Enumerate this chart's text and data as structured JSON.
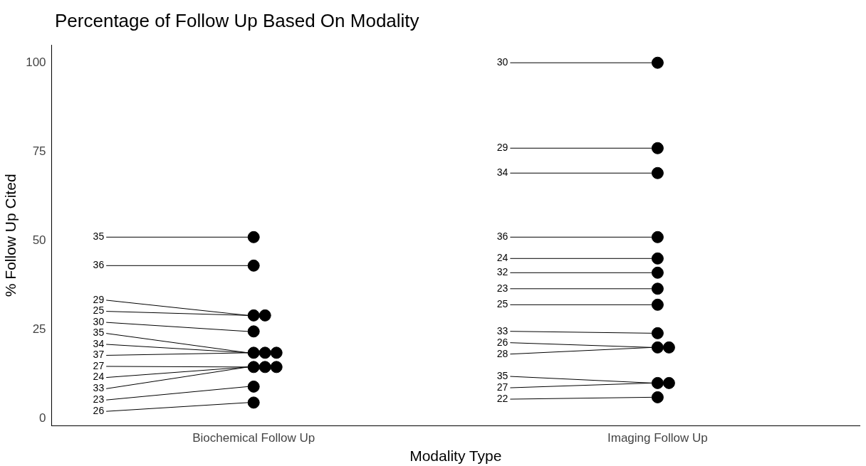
{
  "chart_data": {
    "type": "scatter",
    "title": "Percentage of Follow Up Based On Modality",
    "xlabel": "Modality Type",
    "ylabel": "% Follow Up Cited",
    "categories": [
      "Biochemical Follow Up",
      "Imaging Follow Up"
    ],
    "series": [
      {
        "color": "#000000",
        "x": [
          "Biochemical Follow Up",
          "Biochemical Follow Up",
          "Biochemical Follow Up",
          "Biochemical Follow Up",
          "Biochemical Follow Up",
          "Biochemical Follow Up",
          "Biochemical Follow Up",
          "Biochemical Follow Up",
          "Biochemical Follow Up",
          "Biochemical Follow Up",
          "Biochemical Follow Up",
          "Biochemical Follow Up",
          "Biochemical Follow Up",
          "Imaging Follow Up",
          "Imaging Follow Up",
          "Imaging Follow Up",
          "Imaging Follow Up",
          "Imaging Follow Up",
          "Imaging Follow Up",
          "Imaging Follow Up",
          "Imaging Follow Up",
          "Imaging Follow Up",
          "Imaging Follow Up",
          "Imaging Follow Up",
          "Imaging Follow Up",
          "Imaging Follow Up",
          "Imaging Follow Up"
        ],
        "values": [
          51,
          43,
          29,
          29,
          24.5,
          18.5,
          18.5,
          18.5,
          14.5,
          14.5,
          14.5,
          9,
          4.5,
          100,
          76,
          69,
          51,
          45,
          41,
          36.5,
          32,
          24,
          20,
          20,
          10,
          10,
          6
        ]
      }
    ],
    "annotations": [
      {
        "text": "35",
        "x": "Biochemical Follow Up",
        "y": 51
      },
      {
        "text": "36",
        "x": "Biochemical Follow Up",
        "y": 43
      },
      {
        "text": "29",
        "x": "Biochemical Follow Up",
        "y": 29
      },
      {
        "text": "25",
        "x": "Biochemical Follow Up",
        "y": 29
      },
      {
        "text": "30",
        "x": "Biochemical Follow Up",
        "y": 24.5
      },
      {
        "text": "35",
        "x": "Biochemical Follow Up",
        "y": 18.5
      },
      {
        "text": "34",
        "x": "Biochemical Follow Up",
        "y": 18.5
      },
      {
        "text": "37",
        "x": "Biochemical Follow Up",
        "y": 18.5
      },
      {
        "text": "27",
        "x": "Biochemical Follow Up",
        "y": 14.5
      },
      {
        "text": "24",
        "x": "Biochemical Follow Up",
        "y": 14.5
      },
      {
        "text": "33",
        "x": "Biochemical Follow Up",
        "y": 14.5
      },
      {
        "text": "23",
        "x": "Biochemical Follow Up",
        "y": 9
      },
      {
        "text": "26",
        "x": "Biochemical Follow Up",
        "y": 4.5
      },
      {
        "text": "30",
        "x": "Imaging Follow Up",
        "y": 100
      },
      {
        "text": "29",
        "x": "Imaging Follow Up",
        "y": 76
      },
      {
        "text": "34",
        "x": "Imaging Follow Up",
        "y": 69
      },
      {
        "text": "36",
        "x": "Imaging Follow Up",
        "y": 51
      },
      {
        "text": "24",
        "x": "Imaging Follow Up",
        "y": 45
      },
      {
        "text": "32",
        "x": "Imaging Follow Up",
        "y": 41
      },
      {
        "text": "23",
        "x": "Imaging Follow Up",
        "y": 36.5
      },
      {
        "text": "25",
        "x": "Imaging Follow Up",
        "y": 32
      },
      {
        "text": "33",
        "x": "Imaging Follow Up",
        "y": 24
      },
      {
        "text": "26",
        "x": "Imaging Follow Up",
        "y": 20
      },
      {
        "text": "28",
        "x": "Imaging Follow Up",
        "y": 20
      },
      {
        "text": "35",
        "x": "Imaging Follow Up",
        "y": 10
      },
      {
        "text": "27",
        "x": "Imaging Follow Up",
        "y": 10
      },
      {
        "text": "22",
        "x": "Imaging Follow Up",
        "y": 6
      }
    ],
    "ylim": [
      -2,
      105
    ],
    "yticks": [
      0,
      25,
      50,
      75,
      100
    ],
    "grid": false,
    "legend": false,
    "marker": "circle"
  }
}
